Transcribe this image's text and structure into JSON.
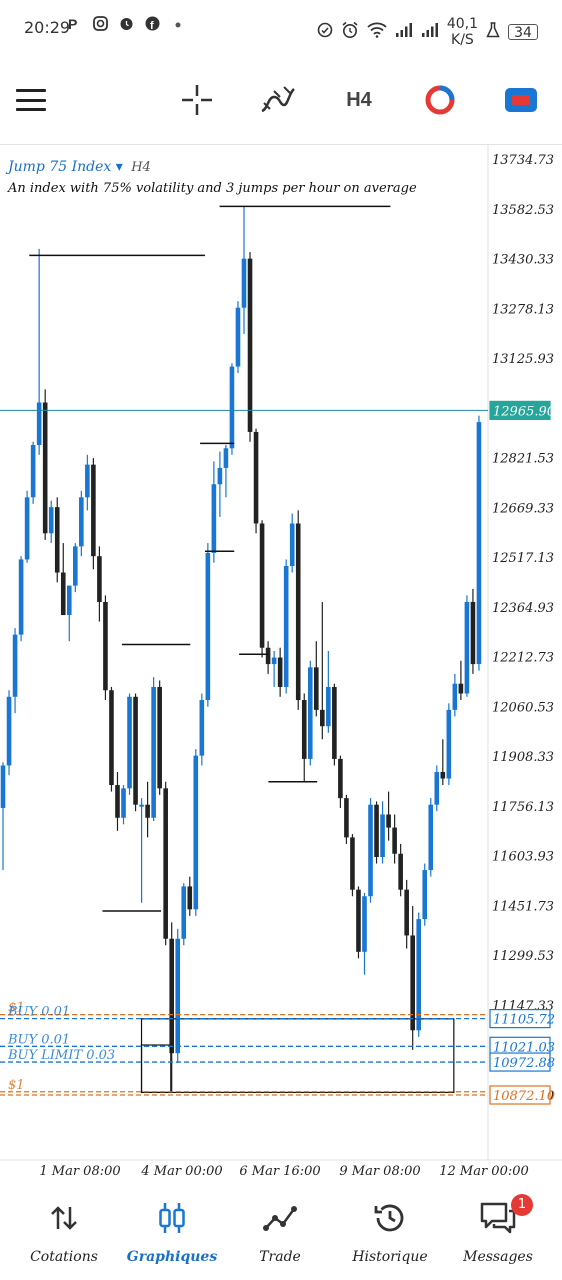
{
  "status_bar": {
    "time": "20:29",
    "left_icons": [
      "pinterest-icon",
      "instagram-icon",
      "alarm-icon",
      "facebook-icon",
      "dot-icon"
    ],
    "right_icons": [
      "data-saver-icon",
      "alarm-clock-icon",
      "wifi-icon",
      "signal-icon",
      "signal-icon"
    ],
    "net_speed_value": "40,1",
    "net_speed_unit": "K/S",
    "battery_level": "34"
  },
  "toolbar": {
    "timeframe_label": "H4",
    "icons": [
      "menu-icon",
      "crosshair-icon",
      "indicator-icon",
      "timeframe",
      "clock-icon",
      "trade-icon"
    ]
  },
  "chart": {
    "symbol": "Jump 75 Index",
    "dropdown_glyph": "▾",
    "timeframe": "H4",
    "description": "An index with 75% volatility and 3 jumps per hour on average",
    "current_price": "12965.90",
    "colors": {
      "bull": "#1976d2",
      "bear": "#222222",
      "price_line": "#1e88a8",
      "price_label_bg": "#26a69a",
      "order_blue": "#1976d2",
      "order_orange": "#e07020"
    }
  },
  "chart_data": {
    "type": "candlestick",
    "title": "Jump 75 Index",
    "timeframe": "H4",
    "y_ticks": [
      "13734.73",
      "13582.53",
      "13430.33",
      "13278.13",
      "13125.93",
      "12821.53",
      "12669.33",
      "12517.13",
      "12364.93",
      "12212.73",
      "12060.53",
      "11908.33",
      "11756.13",
      "11603.93",
      "11451.73",
      "11299.53",
      "11147.33",
      "10872.10"
    ],
    "x_ticks": [
      "1 Mar 08:00",
      "4 Mar 00:00",
      "6 Mar 16:00",
      "9 Mar 08:00",
      "12 Mar 00:00"
    ],
    "price_labels": [
      {
        "text": "12965.90",
        "kind": "current"
      },
      {
        "text": "11105.72",
        "kind": "order-blue"
      },
      {
        "text": "11021.03",
        "kind": "order-blue"
      },
      {
        "text": "10972.88",
        "kind": "order-blue"
      },
      {
        "text": "10872.10",
        "kind": "order-orange"
      }
    ],
    "order_lines": [
      {
        "label": "$1",
        "price": 11118,
        "color": "orange"
      },
      {
        "label": "BUY 0.01",
        "price": 11105.72,
        "color": "blue"
      },
      {
        "label": "BUY 0.01",
        "price": 11021.03,
        "color": "blue"
      },
      {
        "label": "BUY LIMIT 0.03",
        "price": 10972.88,
        "color": "blue"
      },
      {
        "label": "$1",
        "price": 10882,
        "color": "orange"
      },
      {
        "label": "",
        "price": 10872.1,
        "color": "orange"
      }
    ],
    "drawn_levels": [
      {
        "x1": 0.06,
        "x2": 0.42,
        "price": 13440
      },
      {
        "x1": 0.45,
        "x2": 0.8,
        "price": 13590
      },
      {
        "x1": 0.41,
        "x2": 0.48,
        "price": 12865
      },
      {
        "x1": 0.42,
        "x2": 0.48,
        "price": 12535
      },
      {
        "x1": 0.25,
        "x2": 0.39,
        "price": 12250
      },
      {
        "x1": 0.49,
        "x2": 0.55,
        "price": 12220
      },
      {
        "x1": 0.55,
        "x2": 0.65,
        "price": 11830
      },
      {
        "x1": 0.21,
        "x2": 0.33,
        "price": 11435
      }
    ],
    "zones": [
      {
        "x1": 0.29,
        "x2": 0.93,
        "p_top": 11105,
        "p_bot": 10880
      },
      {
        "x1": 0.29,
        "x2": 0.35,
        "p_top": 11025,
        "p_bot": 10880
      }
    ],
    "candles": [
      {
        "o": 11750,
        "h": 11890,
        "l": 11560,
        "c": 11880
      },
      {
        "o": 11880,
        "h": 12110,
        "l": 11850,
        "c": 12090
      },
      {
        "o": 12090,
        "h": 12300,
        "l": 12040,
        "c": 12280
      },
      {
        "o": 12280,
        "h": 12520,
        "l": 12260,
        "c": 12510
      },
      {
        "o": 12510,
        "h": 12720,
        "l": 12500,
        "c": 12700
      },
      {
        "o": 12700,
        "h": 12870,
        "l": 12680,
        "c": 12860
      },
      {
        "o": 12860,
        "h": 13460,
        "l": 12830,
        "c": 12990
      },
      {
        "o": 12990,
        "h": 13030,
        "l": 12570,
        "c": 12590
      },
      {
        "o": 12590,
        "h": 12690,
        "l": 12560,
        "c": 12670
      },
      {
        "o": 12670,
        "h": 12700,
        "l": 12440,
        "c": 12470
      },
      {
        "o": 12470,
        "h": 12560,
        "l": 12340,
        "c": 12340
      },
      {
        "o": 12340,
        "h": 12430,
        "l": 12260,
        "c": 12430
      },
      {
        "o": 12430,
        "h": 12560,
        "l": 12410,
        "c": 12550
      },
      {
        "o": 12550,
        "h": 12720,
        "l": 12520,
        "c": 12700
      },
      {
        "o": 12700,
        "h": 12830,
        "l": 12660,
        "c": 12800
      },
      {
        "o": 12800,
        "h": 12820,
        "l": 12480,
        "c": 12520
      },
      {
        "o": 12520,
        "h": 12550,
        "l": 12320,
        "c": 12380
      },
      {
        "o": 12380,
        "h": 12400,
        "l": 12080,
        "c": 12110
      },
      {
        "o": 12110,
        "h": 12120,
        "l": 11800,
        "c": 11820
      },
      {
        "o": 11820,
        "h": 11860,
        "l": 11680,
        "c": 11720
      },
      {
        "o": 11720,
        "h": 11820,
        "l": 11700,
        "c": 11810
      },
      {
        "o": 11810,
        "h": 12100,
        "l": 11790,
        "c": 12090
      },
      {
        "o": 12090,
        "h": 12100,
        "l": 11740,
        "c": 11760
      },
      {
        "o": 11760,
        "h": 11780,
        "l": 11460,
        "c": 11760
      },
      {
        "o": 11760,
        "h": 11830,
        "l": 11660,
        "c": 11720
      },
      {
        "o": 11720,
        "h": 12150,
        "l": 11710,
        "c": 12120
      },
      {
        "o": 12120,
        "h": 12140,
        "l": 11790,
        "c": 11810
      },
      {
        "o": 11810,
        "h": 11830,
        "l": 11330,
        "c": 11350
      },
      {
        "o": 11350,
        "h": 11400,
        "l": 10880,
        "c": 11000
      },
      {
        "o": 11000,
        "h": 11380,
        "l": 10970,
        "c": 11350
      },
      {
        "o": 11350,
        "h": 11520,
        "l": 11330,
        "c": 11510
      },
      {
        "o": 11510,
        "h": 11540,
        "l": 11420,
        "c": 11440
      },
      {
        "o": 11440,
        "h": 11930,
        "l": 11420,
        "c": 11910
      },
      {
        "o": 11910,
        "h": 12100,
        "l": 11880,
        "c": 12080
      },
      {
        "o": 12080,
        "h": 12560,
        "l": 12060,
        "c": 12530
      },
      {
        "o": 12530,
        "h": 12810,
        "l": 12500,
        "c": 12740
      },
      {
        "o": 12740,
        "h": 12840,
        "l": 12640,
        "c": 12790
      },
      {
        "o": 12790,
        "h": 12860,
        "l": 12700,
        "c": 12850
      },
      {
        "o": 12850,
        "h": 13110,
        "l": 12830,
        "c": 13100
      },
      {
        "o": 13100,
        "h": 13300,
        "l": 13080,
        "c": 13280
      },
      {
        "o": 13280,
        "h": 13590,
        "l": 13200,
        "c": 13430
      },
      {
        "o": 13430,
        "h": 13450,
        "l": 12870,
        "c": 12900
      },
      {
        "o": 12900,
        "h": 12910,
        "l": 12590,
        "c": 12620
      },
      {
        "o": 12620,
        "h": 12630,
        "l": 12210,
        "c": 12240
      },
      {
        "o": 12240,
        "h": 12260,
        "l": 12160,
        "c": 12190
      },
      {
        "o": 12190,
        "h": 12230,
        "l": 12120,
        "c": 12210
      },
      {
        "o": 12210,
        "h": 12240,
        "l": 12090,
        "c": 12120
      },
      {
        "o": 12120,
        "h": 12510,
        "l": 12100,
        "c": 12490
      },
      {
        "o": 12490,
        "h": 12650,
        "l": 12470,
        "c": 12620
      },
      {
        "o": 12620,
        "h": 12660,
        "l": 12050,
        "c": 12080
      },
      {
        "o": 12080,
        "h": 12100,
        "l": 11830,
        "c": 11900
      },
      {
        "o": 11900,
        "h": 12200,
        "l": 11880,
        "c": 12180
      },
      {
        "o": 12180,
        "h": 12260,
        "l": 12030,
        "c": 12050
      },
      {
        "o": 12050,
        "h": 12380,
        "l": 11960,
        "c": 12000
      },
      {
        "o": 12000,
        "h": 12230,
        "l": 11980,
        "c": 12120
      },
      {
        "o": 12120,
        "h": 12130,
        "l": 11880,
        "c": 11900
      },
      {
        "o": 11900,
        "h": 11910,
        "l": 11750,
        "c": 11780
      },
      {
        "o": 11780,
        "h": 11790,
        "l": 11640,
        "c": 11660
      },
      {
        "o": 11660,
        "h": 11670,
        "l": 11480,
        "c": 11500
      },
      {
        "o": 11500,
        "h": 11510,
        "l": 11290,
        "c": 11310
      },
      {
        "o": 11310,
        "h": 11490,
        "l": 11240,
        "c": 11480
      },
      {
        "o": 11480,
        "h": 11780,
        "l": 11460,
        "c": 11760
      },
      {
        "o": 11760,
        "h": 11770,
        "l": 11580,
        "c": 11600
      },
      {
        "o": 11600,
        "h": 11770,
        "l": 11580,
        "c": 11730
      },
      {
        "o": 11730,
        "h": 11800,
        "l": 11650,
        "c": 11690
      },
      {
        "o": 11690,
        "h": 11730,
        "l": 11580,
        "c": 11610
      },
      {
        "o": 11610,
        "h": 11640,
        "l": 11480,
        "c": 11500
      },
      {
        "o": 11500,
        "h": 11530,
        "l": 11320,
        "c": 11360
      },
      {
        "o": 11360,
        "h": 11450,
        "l": 11010,
        "c": 11070
      },
      {
        "o": 11070,
        "h": 11430,
        "l": 11050,
        "c": 11410
      },
      {
        "o": 11410,
        "h": 11580,
        "l": 11390,
        "c": 11560
      },
      {
        "o": 11560,
        "h": 11780,
        "l": 11540,
        "c": 11760
      },
      {
        "o": 11760,
        "h": 11880,
        "l": 11740,
        "c": 11860
      },
      {
        "o": 11860,
        "h": 11960,
        "l": 11820,
        "c": 11840
      },
      {
        "o": 11840,
        "h": 12070,
        "l": 11820,
        "c": 12050
      },
      {
        "o": 12050,
        "h": 12160,
        "l": 12030,
        "c": 12130
      },
      {
        "o": 12130,
        "h": 12200,
        "l": 12080,
        "c": 12100
      },
      {
        "o": 12100,
        "h": 12400,
        "l": 12090,
        "c": 12380
      },
      {
        "o": 12380,
        "h": 12420,
        "l": 12160,
        "c": 12190
      },
      {
        "o": 12190,
        "h": 12950,
        "l": 12170,
        "c": 12930
      }
    ]
  },
  "bottom_nav": {
    "items": [
      {
        "label": "Cotations",
        "icon": "quotes-arrows-icon",
        "active": false
      },
      {
        "label": "Graphiques",
        "icon": "candles-icon",
        "active": true
      },
      {
        "label": "Trade",
        "icon": "trade-line-icon",
        "active": false
      },
      {
        "label": "Historique",
        "icon": "history-icon",
        "active": false
      },
      {
        "label": "Messages",
        "icon": "messages-icon",
        "active": false
      }
    ],
    "badge": "1"
  }
}
